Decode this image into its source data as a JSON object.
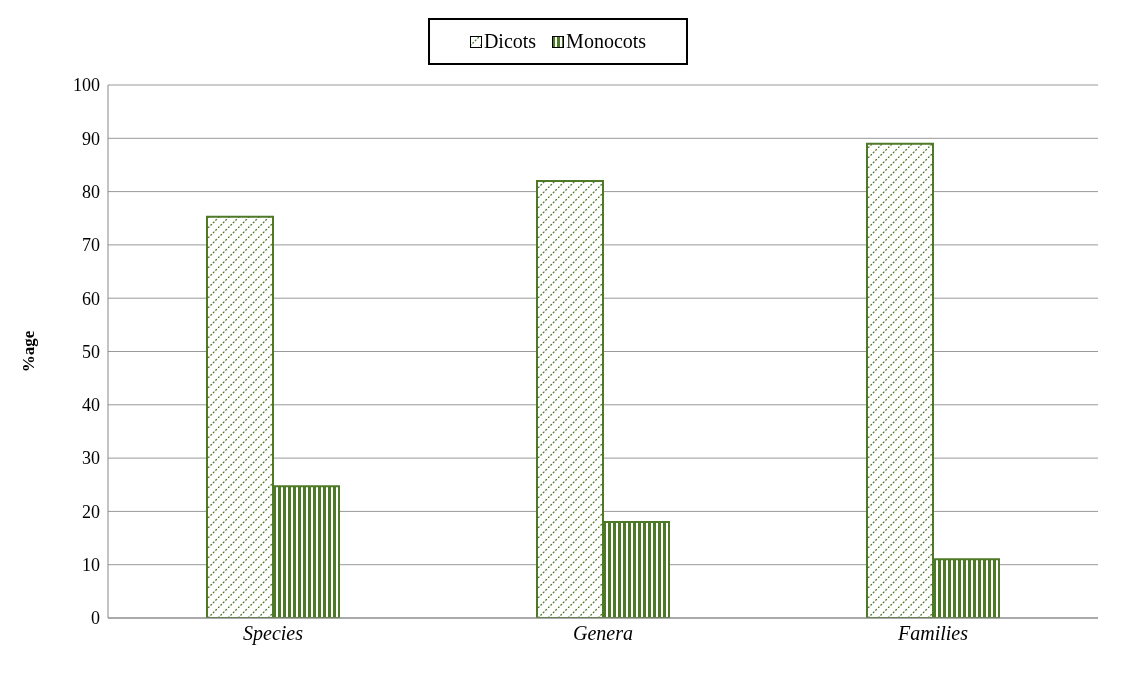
{
  "chart_data": {
    "type": "bar",
    "ylabel": "%age",
    "categories": [
      "Species",
      "Genera",
      "Families"
    ],
    "series": [
      {
        "name": "Dicots",
        "color": "#4e7a27",
        "values": [
          75.3,
          82,
          89
        ]
      },
      {
        "name": "Monocots",
        "color": "#4e7a27",
        "values": [
          24.7,
          18,
          11
        ]
      }
    ],
    "ylim": [
      0,
      100
    ],
    "yticks": [
      0,
      10,
      20,
      30,
      40,
      50,
      60,
      70,
      80,
      90,
      100
    ],
    "grid": "y",
    "legend": "top"
  }
}
